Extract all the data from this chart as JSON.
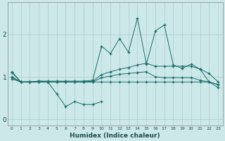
{
  "xlabel": "Humidex (Indice chaleur)",
  "bg_color": "#cde8e8",
  "line_color": "#1a6e6a",
  "grid_color": "#aacece",
  "xlim": [
    -0.5,
    23.5
  ],
  "ylim": [
    -0.15,
    2.75
  ],
  "yticks": [
    0,
    1,
    2
  ],
  "xticks": [
    0,
    1,
    2,
    3,
    4,
    5,
    6,
    7,
    8,
    9,
    10,
    11,
    12,
    13,
    14,
    15,
    16,
    17,
    18,
    19,
    20,
    21,
    22,
    23
  ],
  "line_spike_x": [
    0,
    1,
    2,
    3,
    4,
    5,
    6,
    7,
    8,
    9,
    10,
    11,
    12,
    13,
    14,
    15,
    16,
    17,
    18,
    19,
    20,
    21,
    22,
    23
  ],
  "line_spike_y": [
    1.1,
    0.88,
    0.88,
    0.9,
    0.9,
    0.9,
    0.9,
    0.9,
    0.9,
    0.92,
    1.72,
    1.55,
    1.9,
    1.58,
    2.38,
    1.3,
    2.08,
    2.22,
    1.28,
    1.2,
    1.3,
    1.18,
    0.88,
    0.75
  ],
  "line_upper_x": [
    0,
    1,
    2,
    3,
    4,
    5,
    6,
    7,
    8,
    9,
    10,
    11,
    12,
    13,
    14,
    15,
    16,
    17,
    18,
    19,
    20,
    21,
    22,
    23
  ],
  "line_upper_y": [
    1.0,
    0.88,
    0.88,
    0.88,
    0.88,
    0.88,
    0.88,
    0.88,
    0.88,
    0.9,
    1.05,
    1.12,
    1.18,
    1.22,
    1.28,
    1.32,
    1.25,
    1.25,
    1.25,
    1.25,
    1.25,
    1.18,
    1.08,
    0.88
  ],
  "line_mid_x": [
    0,
    1,
    2,
    3,
    4,
    5,
    6,
    7,
    8,
    9,
    10,
    11,
    12,
    13,
    14,
    15,
    16,
    17,
    18,
    19,
    20,
    21,
    22,
    23
  ],
  "line_mid_y": [
    0.98,
    0.88,
    0.88,
    0.88,
    0.88,
    0.88,
    0.88,
    0.88,
    0.88,
    0.88,
    0.98,
    1.02,
    1.06,
    1.08,
    1.1,
    1.12,
    1.0,
    0.98,
    0.98,
    0.98,
    0.98,
    0.92,
    0.88,
    0.82
  ],
  "line_flat_x": [
    0,
    1,
    2,
    3,
    4,
    5,
    6,
    7,
    8,
    9,
    10,
    11,
    12,
    13,
    14,
    15,
    16,
    17,
    18,
    19,
    20,
    21,
    22,
    23
  ],
  "line_flat_y": [
    0.95,
    0.88,
    0.88,
    0.88,
    0.88,
    0.88,
    0.88,
    0.88,
    0.88,
    0.88,
    0.88,
    0.88,
    0.88,
    0.88,
    0.88,
    0.88,
    0.88,
    0.88,
    0.88,
    0.88,
    0.88,
    0.88,
    0.88,
    0.82
  ],
  "line_dip_x": [
    0,
    1,
    2,
    3,
    4,
    5,
    6,
    7,
    8,
    9,
    10
  ],
  "line_dip_y": [
    1.12,
    0.88,
    0.88,
    0.9,
    0.88,
    0.6,
    0.3,
    0.42,
    0.35,
    0.35,
    0.42
  ]
}
